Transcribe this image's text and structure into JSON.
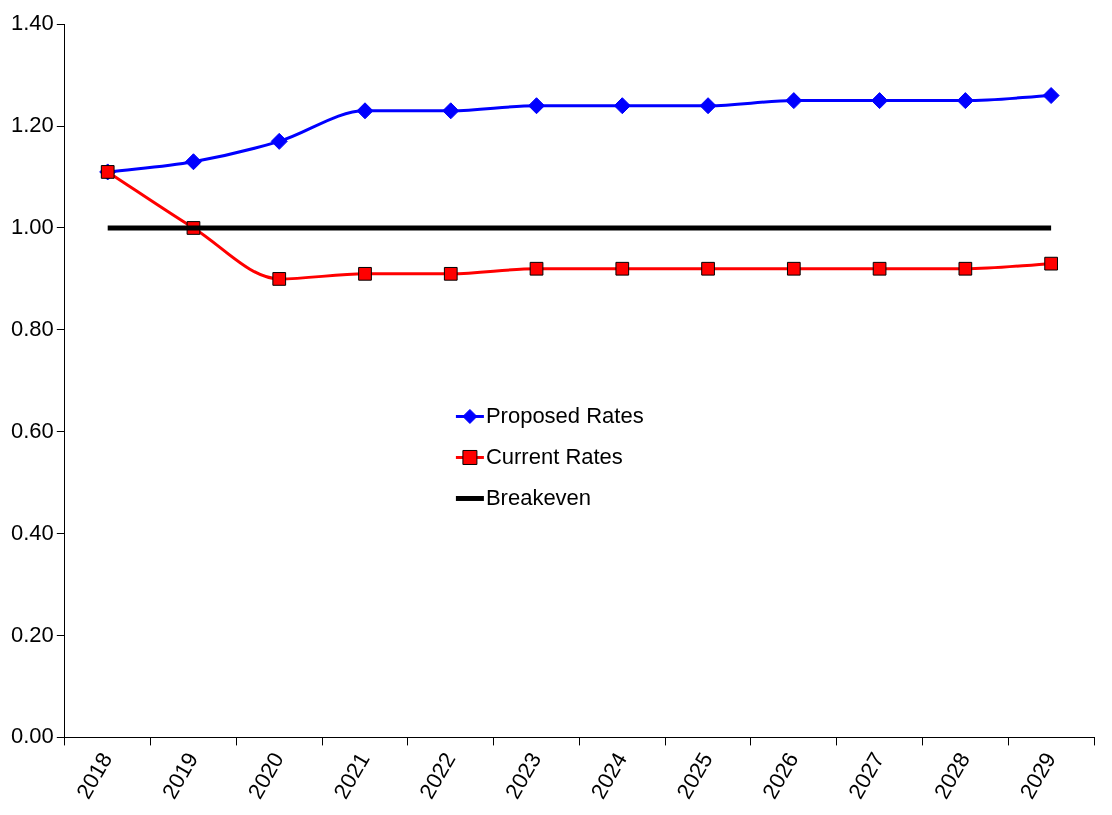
{
  "chart_data": {
    "type": "line",
    "categories": [
      "2018",
      "2019",
      "2020",
      "2021",
      "2022",
      "2023",
      "2024",
      "2025",
      "2026",
      "2027",
      "2028",
      "2029"
    ],
    "series": [
      {
        "name": "Proposed Rates",
        "color": "#0000ff",
        "marker": "diamond",
        "values": [
          1.11,
          1.13,
          1.17,
          1.23,
          1.23,
          1.24,
          1.24,
          1.24,
          1.25,
          1.25,
          1.25,
          1.26
        ]
      },
      {
        "name": "Current Rates",
        "color": "#ff0000",
        "marker": "square",
        "values": [
          1.11,
          1.0,
          0.9,
          0.91,
          0.91,
          0.92,
          0.92,
          0.92,
          0.92,
          0.92,
          0.92,
          0.93
        ]
      },
      {
        "name": "Breakeven",
        "color": "#000000",
        "marker": "none",
        "values": [
          1,
          1,
          1,
          1,
          1,
          1,
          1,
          1,
          1,
          1,
          1,
          1
        ]
      }
    ],
    "ylim": [
      0,
      1.4
    ],
    "yticks": [
      {
        "value": 0,
        "label": "0.00"
      },
      {
        "value": 0.2,
        "label": "0.20"
      },
      {
        "value": 0.4,
        "label": "0.40"
      },
      {
        "value": 0.6,
        "label": "0.60"
      },
      {
        "value": 0.8,
        "label": "0.80"
      },
      {
        "value": 1,
        "label": "1.00"
      },
      {
        "value": 1.2,
        "label": "1.20"
      },
      {
        "value": 1.4,
        "label": "1.40"
      }
    ],
    "grid": false,
    "legend": "center"
  }
}
